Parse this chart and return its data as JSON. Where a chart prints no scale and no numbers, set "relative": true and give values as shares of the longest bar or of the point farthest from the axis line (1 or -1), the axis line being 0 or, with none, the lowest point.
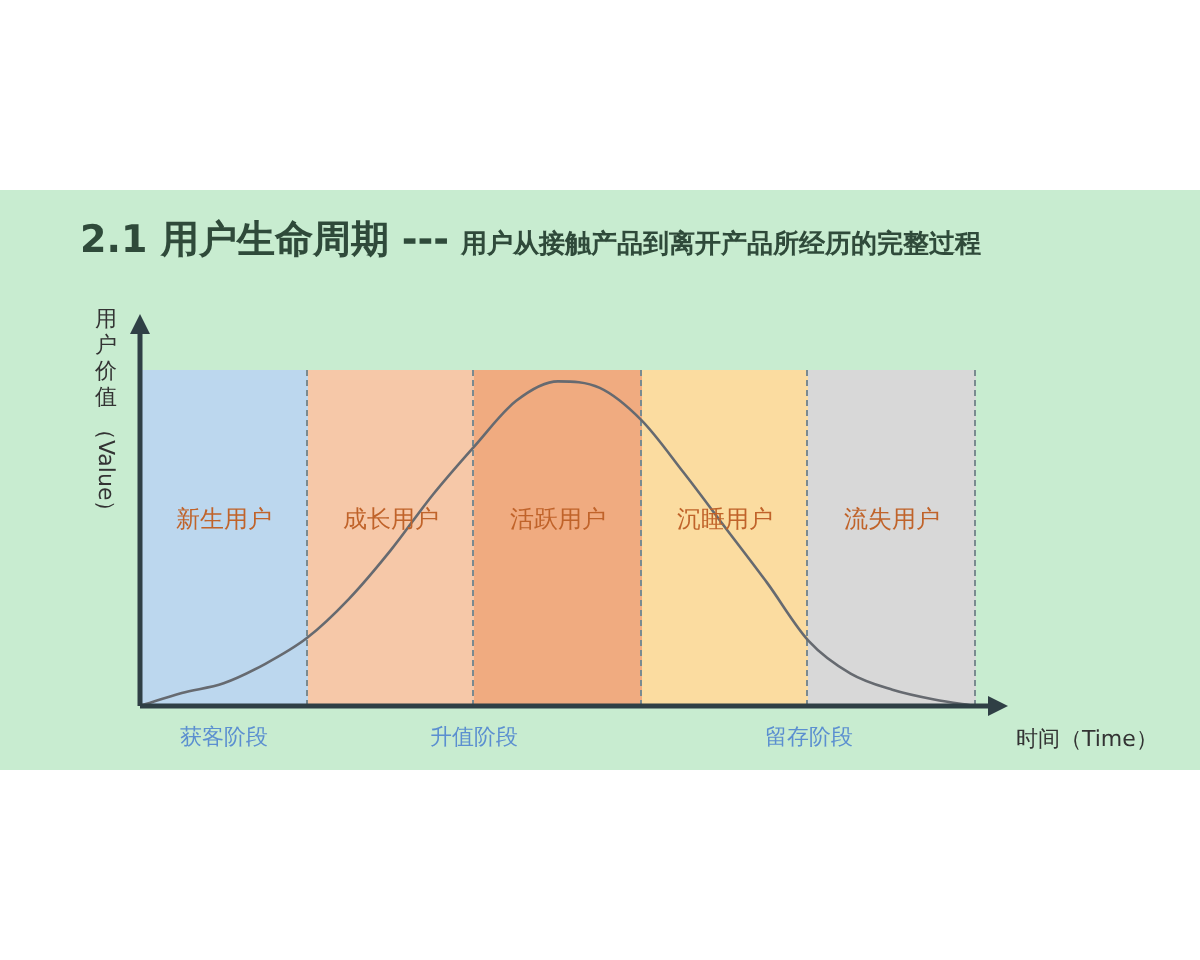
{
  "chart_data": {
    "type": "line",
    "title": "2.1 用户生命周期 ---",
    "subtitle": "用户从接触产品到离开产品所经历的完整过程",
    "xlabel": "时间（Time）",
    "ylabel": "用户价值（Value）",
    "relative": true,
    "grid": "x",
    "tick_labels": false,
    "legend": false,
    "marker": "none",
    "line_style": "solid",
    "categories": [
      null,
      null,
      null,
      null,
      null,
      null,
      null,
      null,
      null,
      null,
      null,
      null,
      null,
      null,
      null,
      null,
      null,
      null,
      null,
      null,
      null
    ],
    "series": [
      {
        "color": "#666a70",
        "values": [
          0,
          0.04,
          0.07,
          0.13,
          0.21,
          0.33,
          0.48,
          0.65,
          0.8,
          0.94,
          1,
          0.98,
          0.88,
          0.72,
          0.55,
          0.38,
          0.2,
          0.1,
          0.05,
          0.02,
          0
        ]
      }
    ],
    "annotations": [
      "新生用户",
      "成长用户",
      "活跃用户",
      "沉睡用户",
      "流失用户",
      "获客阶段",
      "升值阶段",
      "留存阶段"
    ]
  }
}
